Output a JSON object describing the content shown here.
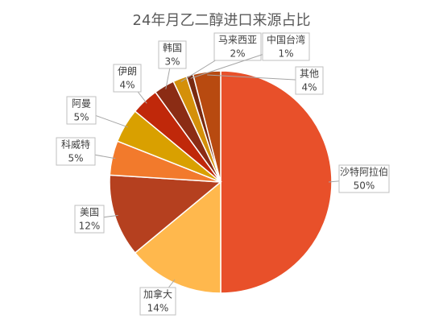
{
  "chart_data": {
    "type": "pie",
    "title": "24年月乙二醇进口来源占比",
    "categories": [
      "沙特阿拉伯",
      "加拿大",
      "美国",
      "科威特",
      "阿曼",
      "伊朗",
      "韩国",
      "马来西亚",
      "中国台湾",
      "其他"
    ],
    "values": [
      50,
      14,
      12,
      5,
      5,
      4,
      3,
      2,
      1,
      4
    ],
    "value_labels": [
      "50%",
      "14%",
      "12%",
      "5%",
      "5%",
      "4%",
      "3%",
      "2%",
      "1%",
      "4%"
    ],
    "colors": [
      "#e8502a",
      "#ffb84d",
      "#b5401f",
      "#f27a2c",
      "#d9a000",
      "#c0280a",
      "#8b2c14",
      "#d4900a",
      "#7a2a10",
      "#b84a10"
    ]
  }
}
